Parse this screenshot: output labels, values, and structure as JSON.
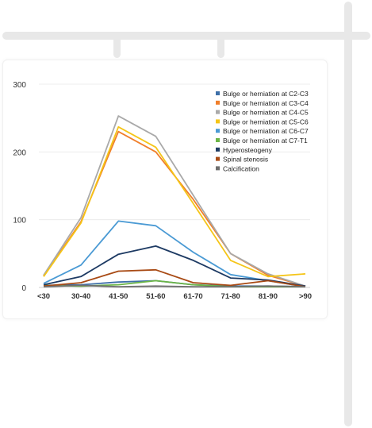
{
  "chart_data": {
    "type": "line",
    "title": "",
    "xlabel": "",
    "ylabel": "",
    "categories": [
      "<30",
      "30-40",
      "41-50",
      "51-60",
      "61-70",
      "71-80",
      "81-90",
      ">90"
    ],
    "ylim": [
      0,
      300
    ],
    "yticks": [
      "0",
      "100",
      "200",
      "300"
    ],
    "grid": true,
    "legend_position": "top-right",
    "series": [
      {
        "name": "Bulge or herniation at C2-C3",
        "color": "#3d6fa8",
        "values": [
          3,
          4,
          8,
          10,
          4,
          2,
          2,
          1
        ]
      },
      {
        "name": "Bulge or herniation at C3-C4",
        "color": "#f07f2b",
        "values": [
          17,
          97,
          230,
          200,
          130,
          50,
          18,
          2
        ]
      },
      {
        "name": "Bulge or herniation at C4-C5",
        "color": "#a9a9a9",
        "values": [
          18,
          103,
          253,
          223,
          136,
          50,
          20,
          2
        ]
      },
      {
        "name": "Bulge or herniation at C5-C6",
        "color": "#f5c518",
        "values": [
          16,
          95,
          237,
          207,
          124,
          40,
          16,
          20
        ]
      },
      {
        "name": "Bulge or herniation at C6-C7",
        "color": "#4a9ad4",
        "values": [
          6,
          33,
          98,
          91,
          52,
          19,
          10,
          1
        ]
      },
      {
        "name": "Bulge or herniation at C7-T1",
        "color": "#6bb546",
        "values": [
          3,
          2,
          4,
          10,
          4,
          1,
          1,
          1
        ]
      },
      {
        "name": "Hyperosteogeny",
        "color": "#1d3a63",
        "values": [
          4,
          16,
          49,
          61,
          40,
          14,
          11,
          2
        ]
      },
      {
        "name": "Spinal stenosis",
        "color": "#a84a14",
        "values": [
          2,
          7,
          24,
          26,
          7,
          3,
          10,
          1
        ]
      },
      {
        "name": "Calcification",
        "color": "#6e6e6e",
        "values": [
          1,
          3,
          1,
          2,
          1,
          1,
          2,
          1
        ]
      }
    ]
  }
}
